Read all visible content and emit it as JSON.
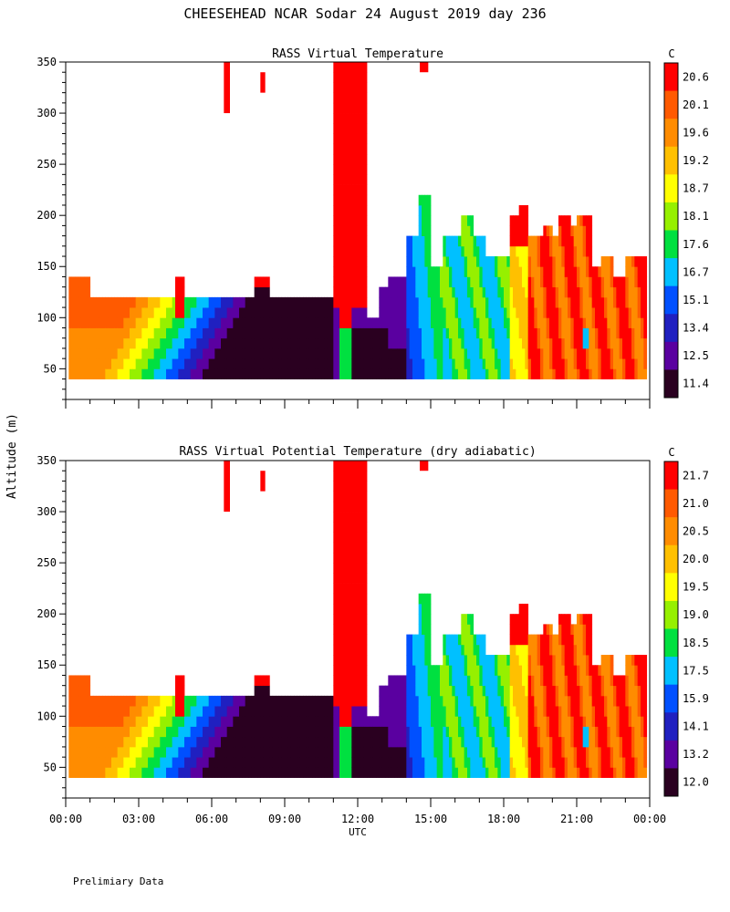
{
  "chart_data": {
    "type": "heatmap",
    "title": "CHEESEHEAD  NCAR Sodar  24 August 2019  day 236",
    "xlabel": "UTC",
    "ylabel": "Altitude (m)",
    "footer": "Prelimiary Data",
    "x_ticks": [
      "00:00",
      "03:00",
      "06:00",
      "09:00",
      "12:00",
      "15:00",
      "18:00",
      "21:00",
      "00:00"
    ],
    "xlim_hours": [
      0,
      24
    ],
    "y_ticks": [
      "50",
      "100",
      "150",
      "200",
      "250",
      "300",
      "350"
    ],
    "ylim": [
      20,
      350
    ],
    "panels": [
      {
        "title": "RASS Virtual Temperature",
        "colorbar_unit": "C",
        "levels": [
          "20.6",
          "20.1",
          "19.6",
          "19.2",
          "18.7",
          "18.1",
          "17.6",
          "16.7",
          "15.1",
          "13.4",
          "12.5",
          "11.4"
        ],
        "level_values": [
          20.6,
          20.1,
          19.6,
          19.2,
          18.7,
          18.1,
          17.6,
          16.7,
          15.1,
          13.4,
          12.5,
          11.4
        ],
        "low": 11.4,
        "high": 20.6
      },
      {
        "title": "RASS Virtual Potential Temperature (dry adiabatic)",
        "colorbar_unit": "C",
        "levels": [
          "21.7",
          "21.0",
          "20.5",
          "20.0",
          "19.5",
          "19.0",
          "18.5",
          "17.5",
          "15.9",
          "14.1",
          "13.2",
          "12.0"
        ],
        "level_values": [
          21.7,
          21.0,
          20.5,
          20.0,
          19.5,
          19.0,
          18.5,
          17.5,
          15.9,
          14.1,
          13.2,
          12.0
        ],
        "low": 12.0,
        "high": 21.7
      }
    ],
    "colormap": [
      "#ff0000",
      "#ff5a00",
      "#ff8c00",
      "#ffc000",
      "#ffff00",
      "#96f000",
      "#00e040",
      "#00c0ff",
      "#0050ff",
      "#2020c0",
      "#5a00a0",
      "#2a0020"
    ]
  }
}
